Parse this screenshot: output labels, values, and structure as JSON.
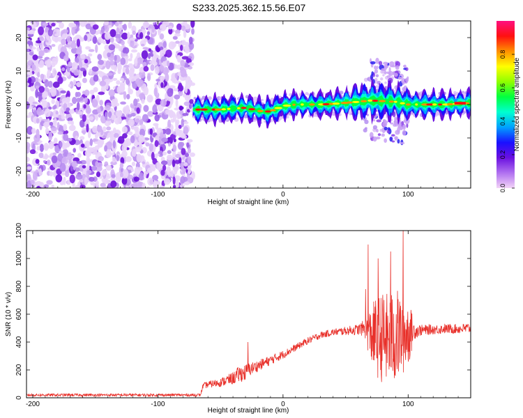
{
  "title": "S233.2025.362.15.56.E07",
  "colors": {
    "plot_border": "#000000",
    "snr_line": "#e8302a",
    "noise_purple": "#7a1fe0",
    "colormap": [
      "#f3d4f7",
      "#b070f0",
      "#6a10e0",
      "#1a10ff",
      "#00a0ff",
      "#00ffd0",
      "#00ff40",
      "#90ff00",
      "#ffff00",
      "#ff9000",
      "#ff1010",
      "#ff1080"
    ]
  },
  "chart_data": [
    {
      "type": "heatmap",
      "name": "spectrogram",
      "xlabel": "Height of straight line (km)",
      "ylabel": "Frequency (Hz)",
      "xlim": [
        -205,
        150
      ],
      "ylim": [
        -25,
        25
      ],
      "xticks": [
        -200,
        -100,
        0,
        100
      ],
      "xtick_labels": [
        "-200",
        "-100",
        "0",
        "100"
      ],
      "yticks": [
        -20,
        -10,
        0,
        10,
        20
      ],
      "ytick_labels": [
        "-20",
        "-10",
        "0",
        "10",
        "20"
      ],
      "noise_region_x": [
        -205,
        -72
      ],
      "signal_start_x": -72,
      "ridge": {
        "x": [
          -72,
          -60,
          -50,
          -40,
          -30,
          -20,
          -15,
          -10,
          0,
          10,
          20,
          30,
          40,
          50,
          60,
          70,
          80,
          90,
          100,
          110,
          120,
          130,
          140,
          150
        ],
        "freq": [
          -1.5,
          -1.5,
          -1.5,
          -1.2,
          -1.0,
          -1.8,
          -2.2,
          -2.0,
          -0.5,
          0.0,
          0.0,
          0.0,
          0.2,
          0.5,
          0.8,
          1.2,
          1.0,
          0.8,
          0.0,
          0.0,
          0.0,
          0.0,
          0.2,
          0.5
        ]
      },
      "colorbar": {
        "label": "Normalized spectral amplitude",
        "range": [
          0,
          1
        ],
        "ticks": [
          0.0,
          0.2,
          0.4,
          0.6,
          0.8
        ],
        "tick_labels": [
          "0.0",
          "0.2",
          "0.4",
          "0.6",
          "0.8"
        ]
      }
    },
    {
      "type": "line",
      "name": "snr",
      "xlabel": "Height of straight line (km)",
      "ylabel": "SNR (10 * v/v)",
      "xlim": [
        -205,
        150
      ],
      "ylim": [
        0,
        1200
      ],
      "xticks": [
        -200,
        -100,
        0,
        100
      ],
      "xtick_labels": [
        "-200",
        "-100",
        "0",
        "100"
      ],
      "yticks": [
        0,
        200,
        400,
        600,
        800,
        1000,
        1200
      ],
      "ytick_labels": [
        "0",
        "200",
        "400",
        "600",
        "800",
        "1000",
        "1200"
      ],
      "series": [
        {
          "name": "SNR",
          "x": [
            -205,
            -150,
            -100,
            -66,
            -64,
            -60,
            -50,
            -40,
            -35,
            -30,
            -28,
            -20,
            -10,
            0,
            10,
            20,
            30,
            40,
            50,
            60,
            65,
            70,
            75,
            80,
            85,
            90,
            95,
            100,
            105,
            110,
            120,
            130,
            140,
            150
          ],
          "center": [
            20,
            20,
            20,
            20,
            85,
            95,
            110,
            140,
            170,
            180,
            200,
            230,
            270,
            310,
            360,
            410,
            450,
            470,
            480,
            490,
            500,
            450,
            440,
            430,
            420,
            440,
            450,
            470,
            480,
            485,
            490,
            495,
            495,
            500
          ],
          "amplitude": [
            10,
            10,
            10,
            10,
            20,
            25,
            30,
            45,
            60,
            60,
            50,
            40,
            35,
            30,
            25,
            25,
            25,
            25,
            30,
            40,
            60,
            200,
            300,
            330,
            330,
            350,
            300,
            250,
            60,
            40,
            35,
            35,
            35,
            40
          ]
        }
      ],
      "peaks": [
        {
          "x": -28,
          "y": 400
        },
        {
          "x": 66,
          "y": 780
        },
        {
          "x": 68,
          "y": 1100
        },
        {
          "x": 76,
          "y": 1000
        },
        {
          "x": 86,
          "y": 1050
        },
        {
          "x": 96,
          "y": 1200
        }
      ]
    }
  ]
}
